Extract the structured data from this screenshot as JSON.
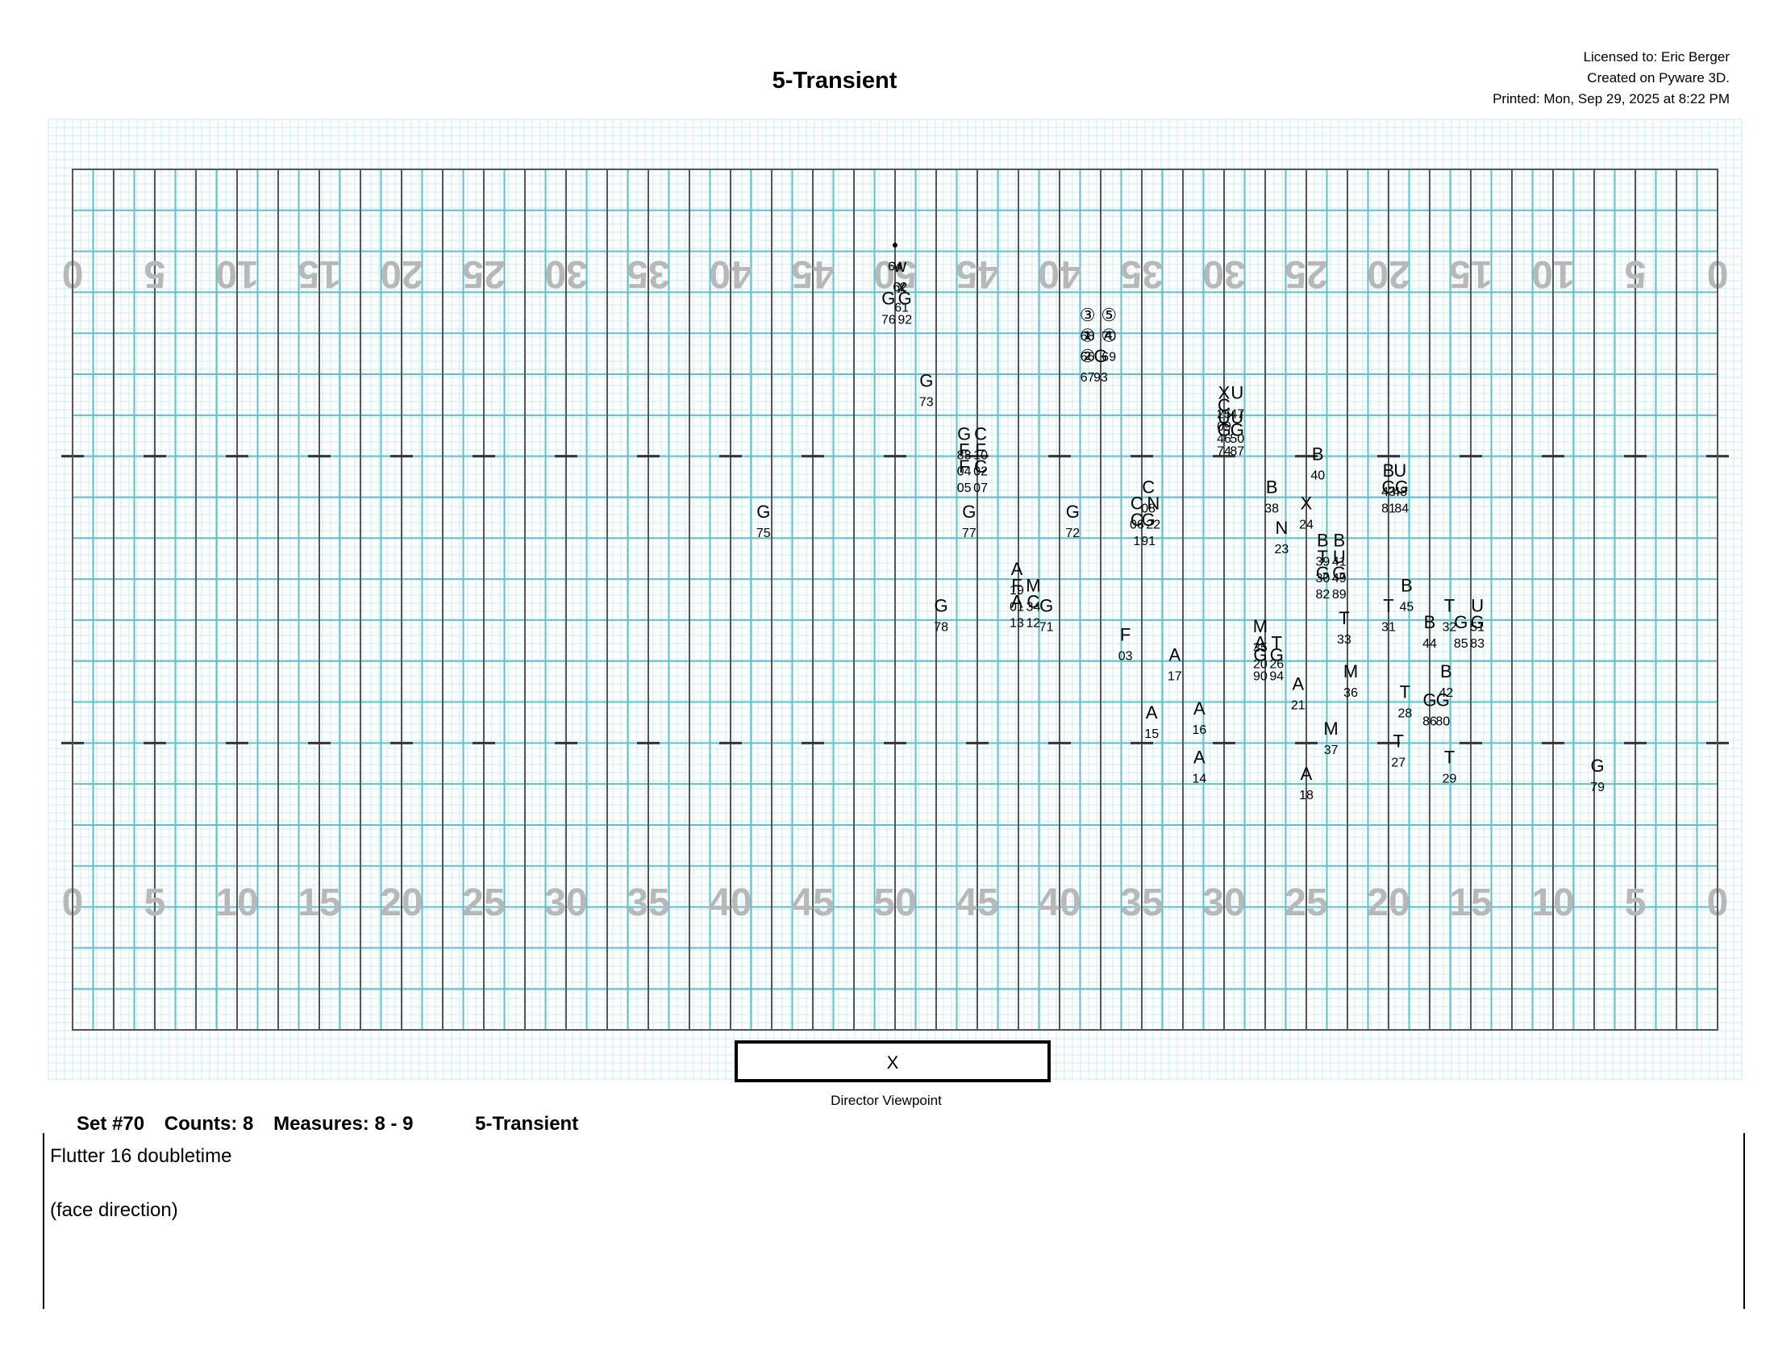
{
  "header": {
    "title": "5-Transient",
    "licensed_to": "Licensed to: Eric Berger",
    "created_on": "Created on Pyware 3D.",
    "printed": "Printed: Mon, Sep 29, 2025 at 8:22 PM"
  },
  "field": {
    "top_yard_numbers": [
      "0",
      "5",
      "10",
      "15",
      "20",
      "25",
      "30",
      "35",
      "40",
      "45",
      "50",
      "45",
      "40",
      "35",
      "30",
      "25",
      "20",
      "15",
      "10",
      "5",
      "0"
    ],
    "bottom_yard_numbers": [
      "0",
      "5",
      "10",
      "15",
      "20",
      "25",
      "30",
      "35",
      "40",
      "45",
      "50",
      "45",
      "40",
      "35",
      "30",
      "25",
      "20",
      "15",
      "10",
      "5",
      "0"
    ],
    "director_box_label": "X",
    "director_viewpoint": "Director Viewpoint"
  },
  "performers": [
    {
      "id": "64",
      "sym": "•",
      "col": 50.0,
      "row": 2.0
    },
    {
      "id": "62",
      "sym": "w",
      "col": 49.7,
      "row": 2.5
    },
    {
      "id": "61",
      "sym": "x",
      "col": 49.6,
      "row": 3.0
    },
    {
      "id": "92",
      "sym": "G",
      "col": 49.4,
      "row": 3.3
    },
    {
      "id": "76",
      "sym": "G",
      "col": 50.4,
      "row": 3.3
    },
    {
      "id": "68",
      "sym": "③",
      "col": 38.3,
      "row": 3.7
    },
    {
      "id": "70",
      "sym": "⑤",
      "col": 37.0,
      "row": 3.7
    },
    {
      "id": "66",
      "sym": "①",
      "col": 38.3,
      "row": 4.2
    },
    {
      "id": "69",
      "sym": "④",
      "col": 37.0,
      "row": 4.2
    },
    {
      "id": "67",
      "sym": "②",
      "col": 38.3,
      "row": 4.7
    },
    {
      "id": "93",
      "sym": "G",
      "col": 37.5,
      "row": 4.7
    },
    {
      "id": "73",
      "sym": "G",
      "col": 48.1,
      "row": 5.3
    },
    {
      "id": "25",
      "sym": "X",
      "col": 30.0,
      "row": 5.6
    },
    {
      "id": "47",
      "sym": "U",
      "col": 29.2,
      "row": 5.6
    },
    {
      "id": "09",
      "sym": "C",
      "col": 30.0,
      "row": 5.9
    },
    {
      "id": "46",
      "sym": "U",
      "col": 30.0,
      "row": 6.2
    },
    {
      "id": "50",
      "sym": "U",
      "col": 29.2,
      "row": 6.2
    },
    {
      "id": "74",
      "sym": "G",
      "col": 30.0,
      "row": 6.5
    },
    {
      "id": "87",
      "sym": "G",
      "col": 29.2,
      "row": 6.5
    },
    {
      "id": "88",
      "sym": "G",
      "col": 45.8,
      "row": 6.6
    },
    {
      "id": "10",
      "sym": "C",
      "col": 44.8,
      "row": 6.6
    },
    {
      "id": "04",
      "sym": "F",
      "col": 45.8,
      "row": 7.0
    },
    {
      "id": "02",
      "sym": "F",
      "col": 44.8,
      "row": 7.0
    },
    {
      "id": "05",
      "sym": "F",
      "col": 45.8,
      "row": 7.4
    },
    {
      "id": "07",
      "sym": "C",
      "col": 44.8,
      "row": 7.4
    },
    {
      "id": "40",
      "sym": "B",
      "col": 24.3,
      "row": 7.1
    },
    {
      "id": "43",
      "sym": "B",
      "col": 20.0,
      "row": 7.5
    },
    {
      "id": "48",
      "sym": "U",
      "col": 19.3,
      "row": 7.5
    },
    {
      "id": "81",
      "sym": "G",
      "col": 20.0,
      "row": 7.9
    },
    {
      "id": "84",
      "sym": "G",
      "col": 19.2,
      "row": 7.9
    },
    {
      "id": "08",
      "sym": "C",
      "col": 34.6,
      "row": 7.9
    },
    {
      "id": "06",
      "sym": "C",
      "col": 35.3,
      "row": 8.3
    },
    {
      "id": "22",
      "sym": "N",
      "col": 34.3,
      "row": 8.3
    },
    {
      "id": "1",
      "sym": "C",
      "col": 35.3,
      "row": 8.7
    },
    {
      "id": "91",
      "sym": "G",
      "col": 34.6,
      "row": 8.7
    },
    {
      "id": "38",
      "sym": "B",
      "col": 27.1,
      "row": 7.9
    },
    {
      "id": "24",
      "sym": "X",
      "col": 25.0,
      "row": 8.3
    },
    {
      "id": "75",
      "sym": "G",
      "col": 58.0,
      "row": 8.5
    },
    {
      "id": "77",
      "sym": "G",
      "col": 45.5,
      "row": 8.5
    },
    {
      "id": "72",
      "sym": "G",
      "col": 39.2,
      "row": 8.5
    },
    {
      "id": "23",
      "sym": "N",
      "col": 26.5,
      "row": 8.9
    },
    {
      "id": "39",
      "sym": "B",
      "col": 24.0,
      "row": 9.2
    },
    {
      "id": "41",
      "sym": "B",
      "col": 23.0,
      "row": 9.2
    },
    {
      "id": "30",
      "sym": "T",
      "col": 24.0,
      "row": 9.6
    },
    {
      "id": "49",
      "sym": "U",
      "col": 23.0,
      "row": 9.6
    },
    {
      "id": "82",
      "sym": "G",
      "col": 24.0,
      "row": 10.0
    },
    {
      "id": "89",
      "sym": "G",
      "col": 23.0,
      "row": 10.0
    },
    {
      "id": "19",
      "sym": "A",
      "col": 42.6,
      "row": 9.9
    },
    {
      "id": "01",
      "sym": "F",
      "col": 42.6,
      "row": 10.3
    },
    {
      "id": "34",
      "sym": "M",
      "col": 41.6,
      "row": 10.3
    },
    {
      "id": "13",
      "sym": "A",
      "col": 42.6,
      "row": 10.7
    },
    {
      "id": "12",
      "sym": "C",
      "col": 41.6,
      "row": 10.7
    },
    {
      "id": "45",
      "sym": "B",
      "col": 18.9,
      "row": 10.3
    },
    {
      "id": "31",
      "sym": "T",
      "col": 20.0,
      "row": 10.8
    },
    {
      "id": "32",
      "sym": "T",
      "col": 16.3,
      "row": 10.8
    },
    {
      "id": "51",
      "sym": "U",
      "col": 14.6,
      "row": 10.8
    },
    {
      "id": "85",
      "sym": "G",
      "col": 15.6,
      "row": 11.2
    },
    {
      "id": "83",
      "sym": "G",
      "col": 14.6,
      "row": 11.2
    },
    {
      "id": "78",
      "sym": "G",
      "col": 47.2,
      "row": 10.8
    },
    {
      "id": "71",
      "sym": "G",
      "col": 40.8,
      "row": 10.8
    },
    {
      "id": "33",
      "sym": "T",
      "col": 22.7,
      "row": 11.1
    },
    {
      "id": "44",
      "sym": "B",
      "col": 17.5,
      "row": 11.2
    },
    {
      "id": "03",
      "sym": "F",
      "col": 36.0,
      "row": 11.5
    },
    {
      "id": "35",
      "sym": "M",
      "col": 27.8,
      "row": 11.3
    },
    {
      "id": "20",
      "sym": "A",
      "col": 27.8,
      "row": 11.7
    },
    {
      "id": "26",
      "sym": "T",
      "col": 26.8,
      "row": 11.7
    },
    {
      "id": "90",
      "sym": "G",
      "col": 27.8,
      "row": 12.0
    },
    {
      "id": "94",
      "sym": "G",
      "col": 26.8,
      "row": 12.0
    },
    {
      "id": "17",
      "sym": "A",
      "col": 33.0,
      "row": 12.0
    },
    {
      "id": "36",
      "sym": "M",
      "col": 22.3,
      "row": 12.4
    },
    {
      "id": "21",
      "sym": "A",
      "col": 25.5,
      "row": 12.7
    },
    {
      "id": "42",
      "sym": "B",
      "col": 16.5,
      "row": 12.4
    },
    {
      "id": "28",
      "sym": "T",
      "col": 19.0,
      "row": 12.9
    },
    {
      "id": "86",
      "sym": "G",
      "col": 17.5,
      "row": 13.1
    },
    {
      "id": "80",
      "sym": "G",
      "col": 16.7,
      "row": 13.1
    },
    {
      "id": "15",
      "sym": "A",
      "col": 34.4,
      "row": 13.4
    },
    {
      "id": "16",
      "sym": "A",
      "col": 31.5,
      "row": 13.3
    },
    {
      "id": "37",
      "sym": "M",
      "col": 23.5,
      "row": 13.8
    },
    {
      "id": "27",
      "sym": "T",
      "col": 19.4,
      "row": 14.1
    },
    {
      "id": "14",
      "sym": "A",
      "col": 31.5,
      "row": 14.5
    },
    {
      "id": "29",
      "sym": "T",
      "col": 16.3,
      "row": 14.5
    },
    {
      "id": "18",
      "sym": "A",
      "col": 25.0,
      "row": 14.9
    },
    {
      "id": "79",
      "sym": "G",
      "col": 7.3,
      "row": 14.7
    }
  ],
  "footer": {
    "set": "Set #70",
    "counts": "Counts: 8",
    "measures": "Measures: 8 - 9",
    "show_title": "5-Transient",
    "note_line_1": "Flutter 16 doubletime",
    "note_line_2": "(face direction)"
  },
  "colors": {
    "grid_fine": "#c8eef0",
    "grid_step": "#5cc0d0",
    "yard_line": "#555555",
    "yard_number": "#b8b8b8"
  }
}
